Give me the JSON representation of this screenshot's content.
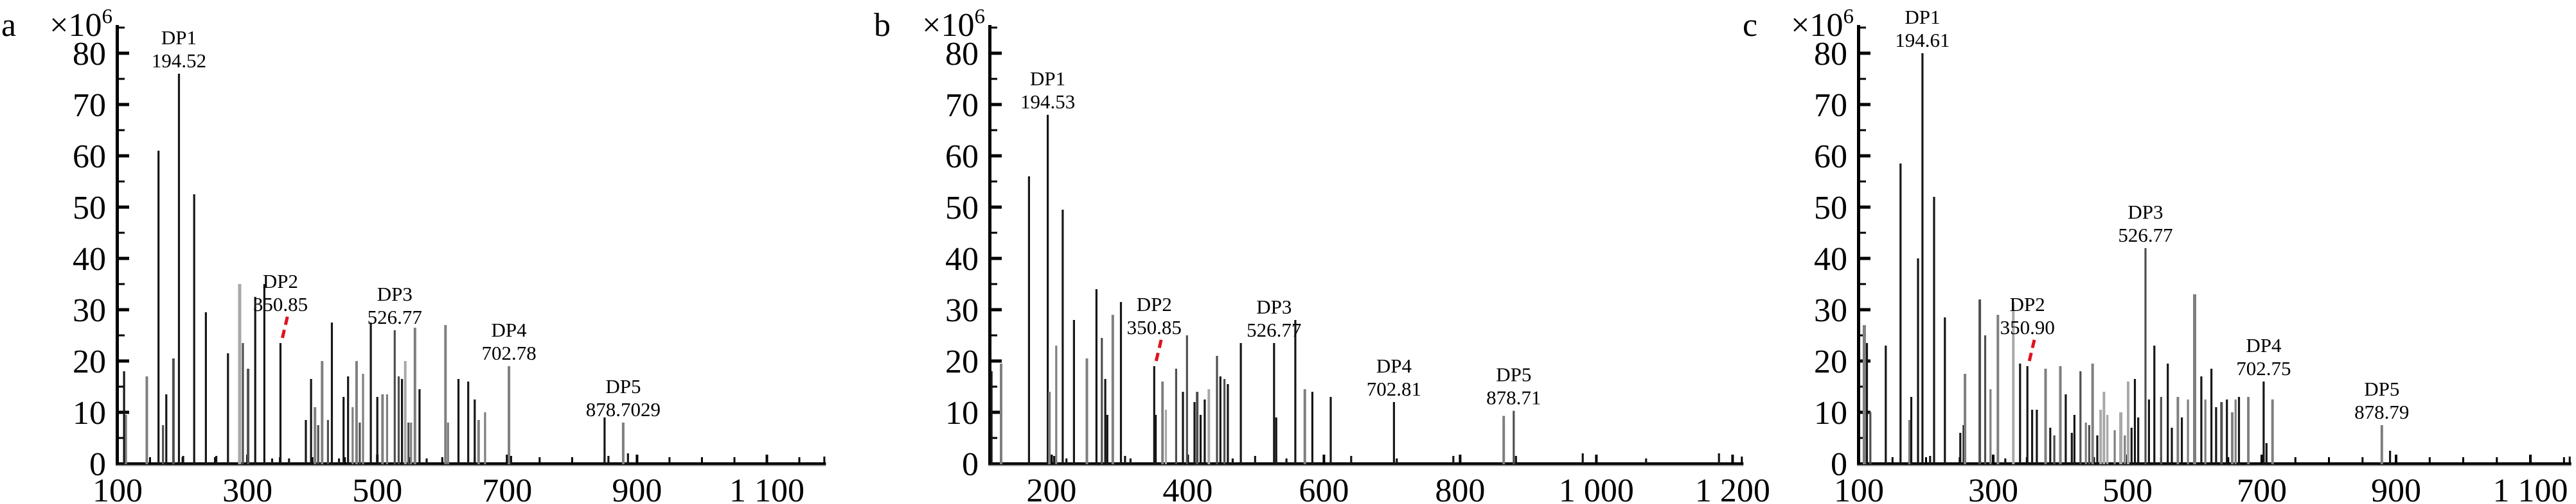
{
  "figure": {
    "description": "Three ESI mass spectra panels with DP1-DP5 labeled peaks",
    "background": "#ffffff"
  },
  "colors": {
    "peak_black": "#161616",
    "peak_dark": "#4f4f4f",
    "peak_gray": "#7f7f7f",
    "peak_light": "#a8a8a8",
    "annotation_red": "#e0121f",
    "axis": "#000000",
    "axis_shadow": "#9a9a9a"
  },
  "chart_data": [
    {
      "type": "bar",
      "subtype": "mass-spectrum-stick-plot",
      "panel_letter": "a",
      "intensity_scale": {
        "base": "×10",
        "exponent": "6"
      },
      "xlabel": "",
      "ylabel": "",
      "xlim": [
        100,
        1190
      ],
      "ylim": [
        0,
        85.5
      ],
      "x_ticks": [
        {
          "value": 100,
          "label": "100"
        },
        {
          "value": 300,
          "label": "300"
        },
        {
          "value": 500,
          "label": "500"
        },
        {
          "value": 700,
          "label": "700"
        },
        {
          "value": 900,
          "label": "900"
        },
        {
          "value": 1100,
          "label": "1 100"
        }
      ],
      "x_minor_step": 50,
      "y_ticks": [
        {
          "value": 0,
          "label": "0"
        },
        {
          "value": 10,
          "label": "10"
        },
        {
          "value": 20,
          "label": "20"
        },
        {
          "value": 30,
          "label": "30"
        },
        {
          "value": 40,
          "label": "40"
        },
        {
          "value": 50,
          "label": "50"
        },
        {
          "value": 60,
          "label": "60"
        },
        {
          "value": 70,
          "label": "70"
        },
        {
          "value": 80,
          "label": "80"
        }
      ],
      "y_minor_step": 5,
      "dp_annotations": [
        {
          "name": "DP1",
          "value": "194.52",
          "mz": 194.52,
          "lift": 0
        },
        {
          "name": "DP2",
          "value": "350.85",
          "mz": 350.85,
          "lift": 40
        },
        {
          "name": "DP3",
          "value": "526.77",
          "mz": 526.77,
          "lift": 0
        },
        {
          "name": "DP4",
          "value": "702.78",
          "mz": 702.78,
          "lift": 0
        },
        {
          "name": "DP5",
          "value": "878.7029",
          "mz": 878.7029,
          "lift": 0
        }
      ],
      "red_mark": {
        "mz": 350.85
      },
      "peaks": [
        [
          110,
          18,
          "k"
        ],
        [
          113,
          9.5,
          "g"
        ],
        [
          145,
          17,
          "g",
          4
        ],
        [
          163,
          61,
          "k"
        ],
        [
          170,
          7.5,
          "d"
        ],
        [
          175,
          13.5,
          "k"
        ],
        [
          186,
          20.5,
          "d",
          4
        ],
        [
          194.52,
          76,
          "k"
        ],
        [
          201,
          1.5,
          "k"
        ],
        [
          218,
          52.5,
          "k"
        ],
        [
          236,
          29.5,
          "k"
        ],
        [
          252,
          1.5,
          "k"
        ],
        [
          270,
          21.5,
          "k"
        ],
        [
          288,
          35,
          "l",
          5
        ],
        [
          293,
          23.5,
          "d"
        ],
        [
          301,
          18.5,
          "d",
          4
        ],
        [
          312,
          32.5,
          "k"
        ],
        [
          326,
          35,
          "k"
        ],
        [
          338,
          1,
          "k"
        ],
        [
          350.85,
          23.5,
          "k"
        ],
        [
          364,
          1,
          "k"
        ],
        [
          390,
          8.5,
          "k"
        ],
        [
          398,
          16.5,
          "k"
        ],
        [
          404,
          11,
          "g",
          4
        ],
        [
          409,
          7.5,
          "d"
        ],
        [
          415,
          20,
          "g",
          4
        ],
        [
          424,
          8.5,
          "d"
        ],
        [
          430,
          27.5,
          "k"
        ],
        [
          441,
          1,
          "k"
        ],
        [
          448,
          13,
          "k"
        ],
        [
          455,
          17,
          "k"
        ],
        [
          462,
          11,
          "g"
        ],
        [
          468,
          20,
          "g",
          4
        ],
        [
          473,
          8,
          "d"
        ],
        [
          478,
          17.5,
          "g"
        ],
        [
          490,
          27.5,
          "k"
        ],
        [
          500,
          13,
          "k"
        ],
        [
          508,
          13.5,
          "g",
          4
        ],
        [
          515,
          13.5,
          "g"
        ],
        [
          526.77,
          26,
          "d"
        ],
        [
          533,
          17,
          "d"
        ],
        [
          538,
          16.5,
          "k"
        ],
        [
          543,
          20,
          "l",
          4
        ],
        [
          548,
          8,
          "d"
        ],
        [
          552,
          8,
          "g"
        ],
        [
          558,
          26.5,
          "g",
          4
        ],
        [
          565,
          14.5,
          "k"
        ],
        [
          576,
          1,
          "k"
        ],
        [
          605,
          27,
          "g",
          4
        ],
        [
          609,
          8,
          "g"
        ],
        [
          625,
          16.5,
          "k"
        ],
        [
          640,
          16,
          "k"
        ],
        [
          650,
          12.5,
          "k"
        ],
        [
          656,
          8.5,
          "g",
          4
        ],
        [
          666,
          10,
          "g"
        ],
        [
          702.78,
          19,
          "g",
          4
        ],
        [
          706,
          1.5,
          "k"
        ],
        [
          850,
          9,
          "k"
        ],
        [
          856,
          1.5,
          "k"
        ],
        [
          878.7029,
          8,
          "g",
          4
        ],
        [
          886,
          2,
          "k"
        ]
      ]
    },
    {
      "type": "bar",
      "subtype": "mass-spectrum-stick-plot",
      "panel_letter": "b",
      "intensity_scale": {
        "base": "×10",
        "exponent": "6"
      },
      "xlabel": "",
      "ylabel": "",
      "xlim": [
        110,
        1215
      ],
      "ylim": [
        0,
        85.5
      ],
      "x_ticks": [
        {
          "value": 200,
          "label": "200"
        },
        {
          "value": 400,
          "label": "400"
        },
        {
          "value": 600,
          "label": "600"
        },
        {
          "value": 800,
          "label": "800"
        },
        {
          "value": 1000,
          "label": "1 000"
        },
        {
          "value": 1200,
          "label": "1 200"
        }
      ],
      "x_minor_step": 0,
      "y_ticks": [
        {
          "value": 0,
          "label": "0"
        },
        {
          "value": 10,
          "label": "10"
        },
        {
          "value": 20,
          "label": "20"
        },
        {
          "value": 30,
          "label": "30"
        },
        {
          "value": 40,
          "label": "40"
        },
        {
          "value": 50,
          "label": "50"
        },
        {
          "value": 60,
          "label": "60"
        },
        {
          "value": 70,
          "label": "70"
        },
        {
          "value": 80,
          "label": "80"
        }
      ],
      "y_minor_step": 5,
      "dp_annotations": [
        {
          "name": "DP1",
          "value": "194.53",
          "mz": 194.53,
          "lift": 0
        },
        {
          "name": "DP2",
          "value": "350.85",
          "mz": 350.85,
          "lift": 40
        },
        {
          "name": "DP3",
          "value": "526.77",
          "mz": 526.77,
          "lift": 0
        },
        {
          "name": "DP4",
          "value": "702.81",
          "mz": 702.81,
          "lift": 0
        },
        {
          "name": "DP5",
          "value": "878.71",
          "mz": 878.71,
          "lift": 0
        }
      ],
      "red_mark": {
        "mz": 350.85
      },
      "peaks": [
        [
          112,
          18,
          "k"
        ],
        [
          126,
          19.5,
          "g",
          4
        ],
        [
          167,
          56,
          "k"
        ],
        [
          194.53,
          68,
          "k"
        ],
        [
          197,
          14,
          "g",
          4
        ],
        [
          204,
          1.5,
          "k"
        ],
        [
          207,
          23,
          "g"
        ],
        [
          216.5,
          49.5,
          "k"
        ],
        [
          222,
          1,
          "k"
        ],
        [
          233,
          28,
          "k"
        ],
        [
          252,
          20.5,
          "g",
          4
        ],
        [
          266,
          34,
          "k"
        ],
        [
          274,
          24.5,
          "d"
        ],
        [
          279,
          16.5,
          "k"
        ],
        [
          282,
          9.5,
          "k"
        ],
        [
          290,
          29,
          "g",
          4
        ],
        [
          302,
          31.5,
          "k"
        ],
        [
          308,
          1.5,
          "k"
        ],
        [
          316,
          1,
          "k"
        ],
        [
          350.85,
          19,
          "k"
        ],
        [
          353,
          9.5,
          "k"
        ],
        [
          363,
          16,
          "g",
          4
        ],
        [
          368,
          10.5,
          "l"
        ],
        [
          383,
          18.5,
          "d"
        ],
        [
          393,
          14,
          "k"
        ],
        [
          399,
          25,
          "d"
        ],
        [
          410,
          12,
          "k"
        ],
        [
          414,
          14,
          "d",
          4
        ],
        [
          419,
          9.5,
          "k"
        ],
        [
          425,
          12.5,
          "k"
        ],
        [
          431,
          14.5,
          "l",
          4
        ],
        [
          443,
          21,
          "d"
        ],
        [
          448,
          17,
          "k"
        ],
        [
          454,
          16.5,
          "d"
        ],
        [
          459,
          15.5,
          "k"
        ],
        [
          466,
          1,
          "k"
        ],
        [
          478,
          23.5,
          "k"
        ],
        [
          499,
          1.5,
          "k"
        ],
        [
          526.77,
          23.5,
          "k"
        ],
        [
          530,
          9,
          "k"
        ],
        [
          545,
          1,
          "k"
        ],
        [
          558,
          28,
          "k"
        ],
        [
          572,
          14.5,
          "g",
          4
        ],
        [
          583,
          14,
          "k"
        ],
        [
          610,
          13,
          "k"
        ],
        [
          640,
          1.5,
          "k"
        ],
        [
          702.81,
          12,
          "k"
        ],
        [
          707,
          1,
          "k"
        ],
        [
          790,
          1.5,
          "k"
        ],
        [
          864,
          9.3,
          "g",
          4
        ],
        [
          878.71,
          10.3,
          "d"
        ],
        [
          882,
          1.5,
          "k"
        ],
        [
          980,
          2,
          "k"
        ],
        [
          1073,
          1,
          "k"
        ],
        [
          1180,
          2,
          "k"
        ]
      ]
    },
    {
      "type": "bar",
      "subtype": "mass-spectrum-stick-plot",
      "panel_letter": "c",
      "intensity_scale": {
        "base": "×10",
        "exponent": "6"
      },
      "xlabel": "",
      "ylabel": "",
      "xlim": [
        100,
        1160
      ],
      "ylim": [
        0,
        85.5
      ],
      "x_ticks": [
        {
          "value": 100,
          "label": "100"
        },
        {
          "value": 300,
          "label": "300"
        },
        {
          "value": 500,
          "label": "500"
        },
        {
          "value": 700,
          "label": "700"
        },
        {
          "value": 900,
          "label": "900"
        },
        {
          "value": 1100,
          "label": "1 100"
        }
      ],
      "x_minor_step": 50,
      "y_ticks": [
        {
          "value": 0,
          "label": "0"
        },
        {
          "value": 10,
          "label": "10"
        },
        {
          "value": 20,
          "label": "20"
        },
        {
          "value": 30,
          "label": "30"
        },
        {
          "value": 40,
          "label": "40"
        },
        {
          "value": 50,
          "label": "50"
        },
        {
          "value": 60,
          "label": "60"
        },
        {
          "value": 70,
          "label": "70"
        },
        {
          "value": 80,
          "label": "80"
        }
      ],
      "y_minor_step": 5,
      "dp_annotations": [
        {
          "name": "DP1",
          "value": "194.61",
          "mz": 194.61,
          "lift": 0
        },
        {
          "name": "DP2",
          "value": "350.90",
          "mz": 350.9,
          "lift": 40
        },
        {
          "name": "DP3",
          "value": "526.77",
          "mz": 526.77,
          "lift": 0
        },
        {
          "name": "DP4",
          "value": "702.75",
          "mz": 702.75,
          "lift": 0
        },
        {
          "name": "DP5",
          "value": "878.79",
          "mz": 878.79,
          "lift": 0
        }
      ],
      "red_mark": {
        "mz": 350.9
      },
      "peaks": [
        [
          108,
          27,
          "g",
          5
        ],
        [
          112,
          23.5,
          "k"
        ],
        [
          117,
          10,
          "d"
        ],
        [
          140,
          23,
          "k"
        ],
        [
          162,
          58.5,
          "k"
        ],
        [
          175,
          8.5,
          "g"
        ],
        [
          178,
          13,
          "k"
        ],
        [
          188,
          40,
          "k"
        ],
        [
          194.61,
          80,
          "k"
        ],
        [
          206,
          1.5,
          "k"
        ],
        [
          212,
          52,
          "k"
        ],
        [
          228,
          28.5,
          "k"
        ],
        [
          251,
          6,
          "k"
        ],
        [
          256,
          7.5,
          "k"
        ],
        [
          258,
          17.5,
          "g",
          4
        ],
        [
          280,
          32,
          "d",
          4
        ],
        [
          288,
          25,
          "d"
        ],
        [
          296,
          14.5,
          "g"
        ],
        [
          307,
          29,
          "g",
          4
        ],
        [
          318,
          1,
          "k"
        ],
        [
          330,
          31.5,
          "l",
          4
        ],
        [
          340,
          19.5,
          "k"
        ],
        [
          350.9,
          19,
          "k"
        ],
        [
          358,
          10.5,
          "k"
        ],
        [
          365,
          10.5,
          "k"
        ],
        [
          378,
          18.5,
          "g",
          4
        ],
        [
          385,
          7,
          "k"
        ],
        [
          391,
          5.5,
          "d"
        ],
        [
          400,
          19,
          "g",
          4
        ],
        [
          408,
          13.5,
          "k"
        ],
        [
          417,
          6,
          "k"
        ],
        [
          421,
          9.5,
          "k"
        ],
        [
          430,
          18,
          "d"
        ],
        [
          438,
          8,
          "g"
        ],
        [
          443,
          7.5,
          "d"
        ],
        [
          448,
          19.5,
          "g",
          4
        ],
        [
          455,
          5.5,
          "k"
        ],
        [
          460,
          10.5,
          "l",
          4
        ],
        [
          465,
          14,
          "l",
          4
        ],
        [
          470,
          9.5,
          "l"
        ],
        [
          481,
          6.5,
          "g"
        ],
        [
          490,
          10,
          "l",
          5
        ],
        [
          496,
          5.5,
          "g"
        ],
        [
          501,
          16,
          "l",
          4
        ],
        [
          506,
          7,
          "k"
        ],
        [
          511,
          16.5,
          "k"
        ],
        [
          516,
          9,
          "k"
        ],
        [
          526.77,
          42,
          "d"
        ],
        [
          532,
          12.5,
          "k"
        ],
        [
          540,
          23,
          "k"
        ],
        [
          550,
          13,
          "d"
        ],
        [
          560,
          19.5,
          "k"
        ],
        [
          566,
          7,
          "k"
        ],
        [
          575,
          13,
          "g",
          4
        ],
        [
          581,
          9,
          "k"
        ],
        [
          590,
          12.5,
          "g"
        ],
        [
          600,
          33,
          "g",
          5
        ],
        [
          610,
          17,
          "k"
        ],
        [
          616,
          12.5,
          "g"
        ],
        [
          625,
          18.5,
          "k"
        ],
        [
          632,
          11,
          "k"
        ],
        [
          640,
          12,
          "d",
          4
        ],
        [
          648,
          12.5,
          "k"
        ],
        [
          656,
          10,
          "g",
          4
        ],
        [
          661,
          12.5,
          "g"
        ],
        [
          666,
          13,
          "k"
        ],
        [
          680,
          13,
          "g",
          4
        ],
        [
          702.75,
          16,
          "k"
        ],
        [
          707,
          4,
          "k"
        ],
        [
          716,
          12.5,
          "g",
          4
        ],
        [
          878.79,
          7.5,
          "g",
          4
        ],
        [
          891,
          2.5,
          "k"
        ]
      ]
    }
  ]
}
